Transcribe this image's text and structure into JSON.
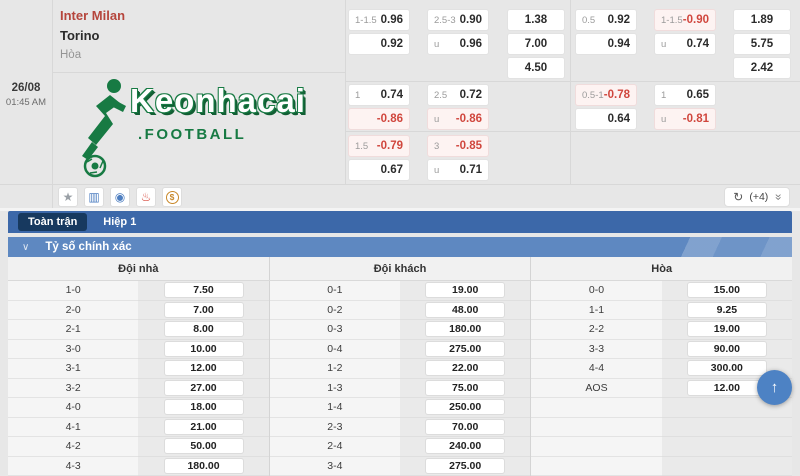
{
  "match": {
    "date": "26/08",
    "time": "01:45 AM",
    "home_team": "Inter Milan",
    "away_team": "Torino",
    "draw_label": "Hòa"
  },
  "logo": {
    "wordmark": "Keonhacai",
    "suffix": ".FOOTBALL",
    "color": "#177a43"
  },
  "odds_panel": {
    "full_time": {
      "rows": [
        {
          "hdp": [
            {
              "label": "1-1.5",
              "value": "0.96"
            },
            {
              "label": "",
              "value": "0.92"
            }
          ],
          "ou": [
            {
              "label": "2.5-3",
              "value": "0.90"
            },
            {
              "label": "u",
              "value": "0.96"
            }
          ],
          "x2": [
            "1.38",
            "7.00",
            "4.50"
          ]
        },
        {
          "hdp": [
            {
              "label": "1",
              "value": "0.74"
            },
            {
              "label": "",
              "value": "-0.86"
            }
          ],
          "ou": [
            {
              "label": "2.5",
              "value": "0.72"
            },
            {
              "label": "u",
              "value": "-0.86"
            }
          ]
        },
        {
          "hdp": [
            {
              "label": "1.5",
              "value": "-0.79"
            },
            {
              "label": "",
              "value": "0.67"
            }
          ],
          "ou": [
            {
              "label": "3",
              "value": "-0.85"
            },
            {
              "label": "u",
              "value": "0.71"
            }
          ]
        }
      ]
    },
    "first_half": {
      "rows": [
        {
          "hdp": [
            {
              "label": "0.5",
              "value": "0.92"
            },
            {
              "label": "",
              "value": "0.94"
            }
          ],
          "ou": [
            {
              "label": "1-1.5",
              "value": "-0.90"
            },
            {
              "label": "u",
              "value": "0.74"
            }
          ],
          "x2": [
            "1.89",
            "5.75",
            "2.42"
          ]
        },
        {
          "hdp": [
            {
              "label": "0.5-1",
              "value": "-0.78"
            },
            {
              "label": "",
              "value": "0.64"
            }
          ],
          "ou": [
            {
              "label": "1",
              "value": "0.65"
            },
            {
              "label": "u",
              "value": "-0.81"
            }
          ]
        }
      ]
    }
  },
  "toolbar": {
    "icons": [
      {
        "name": "favorite-star-icon",
        "glyph": "★",
        "color": "#9aa0a6"
      },
      {
        "name": "livestream-icon",
        "glyph": "▥",
        "color": "#4d7ec0"
      },
      {
        "name": "odds-eye-icon",
        "glyph": "◉",
        "color": "#4d7ec0"
      },
      {
        "name": "hot-match-icon",
        "glyph": "♨",
        "color": "#d6463a"
      },
      {
        "name": "coin-icon",
        "glyph": "$",
        "color": "#c8882a",
        "shape": "coin"
      }
    ],
    "refresh_glyph": "↻",
    "more_count": "(+4)",
    "collapse_glyph": "«"
  },
  "tabs": [
    {
      "label": "Toàn trận",
      "active": true
    },
    {
      "label": "Hiệp 1",
      "active": false
    }
  ],
  "section": {
    "chevron_glyph": "∨",
    "title": "Tỷ số chính xác"
  },
  "score_table": {
    "headers": [
      "Đội nhà",
      "Đội khách",
      "Hòa"
    ],
    "home": [
      {
        "score": "1-0",
        "odd": "7.50"
      },
      {
        "score": "2-0",
        "odd": "7.00"
      },
      {
        "score": "2-1",
        "odd": "8.00"
      },
      {
        "score": "3-0",
        "odd": "10.00"
      },
      {
        "score": "3-1",
        "odd": "12.00"
      },
      {
        "score": "3-2",
        "odd": "27.00"
      },
      {
        "score": "4-0",
        "odd": "18.00"
      },
      {
        "score": "4-1",
        "odd": "21.00"
      },
      {
        "score": "4-2",
        "odd": "50.00"
      },
      {
        "score": "4-3",
        "odd": "180.00"
      }
    ],
    "away": [
      {
        "score": "0-1",
        "odd": "19.00"
      },
      {
        "score": "0-2",
        "odd": "48.00"
      },
      {
        "score": "0-3",
        "odd": "180.00"
      },
      {
        "score": "0-4",
        "odd": "275.00"
      },
      {
        "score": "1-2",
        "odd": "22.00"
      },
      {
        "score": "1-3",
        "odd": "75.00"
      },
      {
        "score": "1-4",
        "odd": "250.00"
      },
      {
        "score": "2-3",
        "odd": "70.00"
      },
      {
        "score": "2-4",
        "odd": "240.00"
      },
      {
        "score": "3-4",
        "odd": "275.00"
      }
    ],
    "draw": [
      {
        "score": "0-0",
        "odd": "15.00"
      },
      {
        "score": "1-1",
        "odd": "9.25"
      },
      {
        "score": "2-2",
        "odd": "19.00"
      },
      {
        "score": "3-3",
        "odd": "90.00"
      },
      {
        "score": "4-4",
        "odd": "300.00"
      },
      {
        "score": "AOS",
        "odd": "12.00"
      }
    ]
  },
  "back_to_top": {
    "glyph": "↑"
  }
}
